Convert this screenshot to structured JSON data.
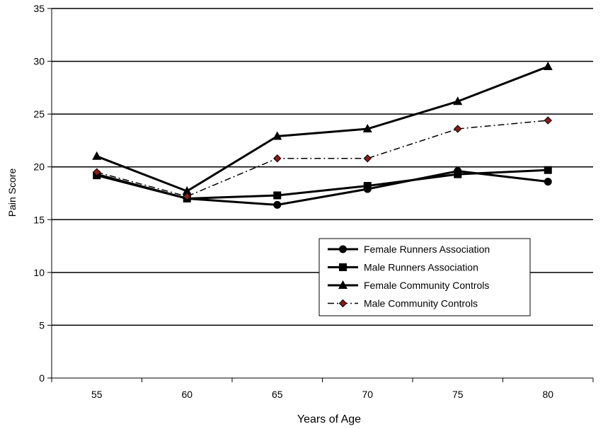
{
  "chart_data": {
    "type": "line",
    "xlabel": "Years of Age",
    "ylabel": "Pain Score",
    "categories": [
      "55",
      "60",
      "65",
      "70",
      "75",
      "80"
    ],
    "ylim": [
      0,
      35
    ],
    "yticks": [
      0,
      5,
      10,
      15,
      20,
      25,
      30,
      35
    ],
    "grid": "horizontal",
    "legend_position": "lower-right",
    "series": [
      {
        "name": "Female Runners Association",
        "marker": "circle",
        "style": "solid",
        "color": "#000000",
        "values": [
          19.3,
          17.0,
          16.4,
          17.9,
          19.6,
          18.6
        ]
      },
      {
        "name": "Male Runners Association",
        "marker": "square",
        "style": "solid",
        "color": "#000000",
        "values": [
          19.2,
          17.0,
          17.3,
          18.2,
          19.3,
          19.7
        ]
      },
      {
        "name": "Female Community Controls",
        "marker": "triangle",
        "style": "solid",
        "color": "#000000",
        "values": [
          21.0,
          17.7,
          22.9,
          23.6,
          26.2,
          29.5
        ]
      },
      {
        "name": "Male Community Controls",
        "marker": "diamond",
        "style": "dashdot",
        "color": "#000000",
        "marker_fill": "#8b1a1a",
        "values": [
          19.5,
          17.2,
          20.8,
          20.8,
          23.6,
          24.4
        ]
      }
    ]
  }
}
